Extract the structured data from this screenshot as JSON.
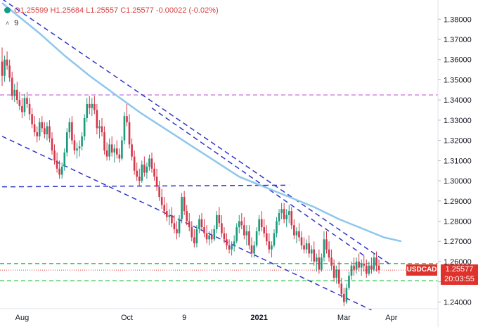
{
  "header": {
    "open": "O1.25599",
    "high": "H1.25684",
    "low": "L1.25557",
    "close": "C1.25577",
    "change": "-0.00022 (-0.02%)",
    "indicator_count": "9"
  },
  "price_tag": {
    "symbol": "USDCAD",
    "price": "1.25577",
    "countdown": "20:03:55"
  },
  "colors": {
    "up": "#1c9a7c",
    "down": "#d4364a",
    "trendline": "#3035c8",
    "ma": "#8ec7ec",
    "resistance": "#cc6ee0",
    "support": "#28c44a",
    "tag": "#e0322c"
  },
  "chart_data": {
    "type": "candlestick",
    "symbol": "USDCAD",
    "y_range": [
      1.237,
      1.3895
    ],
    "y_ticks": [
      "1.38000",
      "1.37000",
      "1.36000",
      "1.35000",
      "1.34000",
      "1.33000",
      "1.32000",
      "1.31000",
      "1.30000",
      "1.29000",
      "1.28000",
      "1.27000",
      "1.26000",
      "1.25000",
      "1.24000"
    ],
    "x_labels": [
      "Aug",
      "Oct",
      "9",
      "2021",
      "Mar",
      "Apr"
    ],
    "x_ticks": [
      {
        "i": 8,
        "label": "Aug"
      },
      {
        "i": 50,
        "label": "Oct"
      },
      {
        "i": 73,
        "label": "9"
      },
      {
        "i": 103,
        "label": "2021"
      },
      {
        "i": 137,
        "label": "Mar"
      },
      {
        "i": 156,
        "label": "Apr"
      }
    ],
    "candles": [
      [
        1.359,
        1.366,
        1.347,
        1.352
      ],
      [
        1.352,
        1.362,
        1.349,
        1.36
      ],
      [
        1.36,
        1.364,
        1.355,
        1.357
      ],
      [
        1.357,
        1.36,
        1.349,
        1.351
      ],
      [
        1.351,
        1.354,
        1.34,
        1.342
      ],
      [
        1.342,
        1.348,
        1.339,
        1.345
      ],
      [
        1.345,
        1.349,
        1.338,
        1.34
      ],
      [
        1.34,
        1.344,
        1.335,
        1.337
      ],
      [
        1.337,
        1.341,
        1.331,
        1.334
      ],
      [
        1.334,
        1.343,
        1.332,
        1.341
      ],
      [
        1.341,
        1.344,
        1.336,
        1.338
      ],
      [
        1.338,
        1.341,
        1.33,
        1.333
      ],
      [
        1.333,
        1.336,
        1.326,
        1.328
      ],
      [
        1.328,
        1.332,
        1.322,
        1.324
      ],
      [
        1.324,
        1.327,
        1.319,
        1.322
      ],
      [
        1.322,
        1.331,
        1.32,
        1.329
      ],
      [
        1.329,
        1.332,
        1.324,
        1.326
      ],
      [
        1.326,
        1.329,
        1.321,
        1.323
      ],
      [
        1.323,
        1.329,
        1.32,
        1.327
      ],
      [
        1.327,
        1.33,
        1.319,
        1.321
      ],
      [
        1.321,
        1.324,
        1.313,
        1.315
      ],
      [
        1.315,
        1.318,
        1.308,
        1.31
      ],
      [
        1.31,
        1.314,
        1.304,
        1.306
      ],
      [
        1.306,
        1.31,
        1.301,
        1.303
      ],
      [
        1.303,
        1.309,
        1.301,
        1.307
      ],
      [
        1.307,
        1.316,
        1.305,
        1.314
      ],
      [
        1.314,
        1.326,
        1.312,
        1.324
      ],
      [
        1.324,
        1.331,
        1.321,
        1.329
      ],
      [
        1.329,
        1.332,
        1.318,
        1.32
      ],
      [
        1.32,
        1.323,
        1.313,
        1.315
      ],
      [
        1.315,
        1.319,
        1.311,
        1.316
      ],
      [
        1.316,
        1.32,
        1.312,
        1.317
      ],
      [
        1.317,
        1.324,
        1.315,
        1.322
      ],
      [
        1.322,
        1.333,
        1.32,
        1.331
      ],
      [
        1.331,
        1.341,
        1.329,
        1.338
      ],
      [
        1.338,
        1.342,
        1.333,
        1.336
      ],
      [
        1.336,
        1.341,
        1.332,
        1.338
      ],
      [
        1.338,
        1.342,
        1.333,
        1.335
      ],
      [
        1.335,
        1.338,
        1.323,
        1.326
      ],
      [
        1.326,
        1.33,
        1.321,
        1.327
      ],
      [
        1.327,
        1.331,
        1.322,
        1.324
      ],
      [
        1.324,
        1.327,
        1.313,
        1.315
      ],
      [
        1.315,
        1.319,
        1.31,
        1.312
      ],
      [
        1.312,
        1.321,
        1.31,
        1.318
      ],
      [
        1.318,
        1.322,
        1.312,
        1.314
      ],
      [
        1.314,
        1.318,
        1.309,
        1.316
      ],
      [
        1.316,
        1.32,
        1.311,
        1.313
      ],
      [
        1.313,
        1.316,
        1.309,
        1.311
      ],
      [
        1.311,
        1.322,
        1.31,
        1.32
      ],
      [
        1.32,
        1.334,
        1.318,
        1.332
      ],
      [
        1.332,
        1.338,
        1.327,
        1.329
      ],
      [
        1.329,
        1.333,
        1.316,
        1.318
      ],
      [
        1.318,
        1.321,
        1.31,
        1.312
      ],
      [
        1.312,
        1.315,
        1.303,
        1.305
      ],
      [
        1.305,
        1.309,
        1.3,
        1.302
      ],
      [
        1.302,
        1.306,
        1.297,
        1.3
      ],
      [
        1.3,
        1.31,
        1.299,
        1.308
      ],
      [
        1.308,
        1.312,
        1.302,
        1.304
      ],
      [
        1.304,
        1.309,
        1.301,
        1.307
      ],
      [
        1.307,
        1.313,
        1.305,
        1.311
      ],
      [
        1.311,
        1.314,
        1.304,
        1.306
      ],
      [
        1.306,
        1.309,
        1.3,
        1.302
      ],
      [
        1.302,
        1.306,
        1.295,
        1.297
      ],
      [
        1.297,
        1.3,
        1.29,
        1.292
      ],
      [
        1.292,
        1.296,
        1.286,
        1.288
      ],
      [
        1.288,
        1.292,
        1.283,
        1.285
      ],
      [
        1.285,
        1.289,
        1.28,
        1.282
      ],
      [
        1.282,
        1.286,
        1.278,
        1.283
      ],
      [
        1.283,
        1.287,
        1.277,
        1.279
      ],
      [
        1.279,
        1.283,
        1.274,
        1.276
      ],
      [
        1.276,
        1.28,
        1.271,
        1.274
      ],
      [
        1.274,
        1.283,
        1.272,
        1.281
      ],
      [
        1.281,
        1.294,
        1.279,
        1.292
      ],
      [
        1.292,
        1.295,
        1.283,
        1.285
      ],
      [
        1.285,
        1.288,
        1.278,
        1.28
      ],
      [
        1.28,
        1.284,
        1.275,
        1.277
      ],
      [
        1.277,
        1.28,
        1.27,
        1.272
      ],
      [
        1.272,
        1.276,
        1.267,
        1.269
      ],
      [
        1.269,
        1.278,
        1.267,
        1.276
      ],
      [
        1.276,
        1.283,
        1.274,
        1.281
      ],
      [
        1.281,
        1.284,
        1.275,
        1.277
      ],
      [
        1.277,
        1.281,
        1.272,
        1.274
      ],
      [
        1.274,
        1.278,
        1.269,
        1.271
      ],
      [
        1.271,
        1.275,
        1.268,
        1.273
      ],
      [
        1.273,
        1.276,
        1.269,
        1.271
      ],
      [
        1.271,
        1.278,
        1.27,
        1.276
      ],
      [
        1.276,
        1.285,
        1.274,
        1.283
      ],
      [
        1.283,
        1.287,
        1.277,
        1.279
      ],
      [
        1.279,
        1.283,
        1.272,
        1.274
      ],
      [
        1.274,
        1.277,
        1.269,
        1.271
      ],
      [
        1.271,
        1.274,
        1.266,
        1.268
      ],
      [
        1.268,
        1.271,
        1.264,
        1.266
      ],
      [
        1.266,
        1.27,
        1.263,
        1.268
      ],
      [
        1.268,
        1.273,
        1.265,
        1.27
      ],
      [
        1.27,
        1.279,
        1.269,
        1.277
      ],
      [
        1.277,
        1.283,
        1.274,
        1.28
      ],
      [
        1.28,
        1.284,
        1.276,
        1.278
      ],
      [
        1.278,
        1.282,
        1.271,
        1.273
      ],
      [
        1.273,
        1.278,
        1.268,
        1.275
      ],
      [
        1.275,
        1.278,
        1.266,
        1.268
      ],
      [
        1.268,
        1.272,
        1.262,
        1.264
      ],
      [
        1.264,
        1.27,
        1.262,
        1.268
      ],
      [
        1.268,
        1.277,
        1.267,
        1.275
      ],
      [
        1.275,
        1.283,
        1.273,
        1.281
      ],
      [
        1.281,
        1.285,
        1.275,
        1.277
      ],
      [
        1.277,
        1.281,
        1.272,
        1.274
      ],
      [
        1.274,
        1.278,
        1.268,
        1.27
      ],
      [
        1.27,
        1.274,
        1.264,
        1.266
      ],
      [
        1.266,
        1.27,
        1.262,
        1.268
      ],
      [
        1.268,
        1.276,
        1.267,
        1.274
      ],
      [
        1.274,
        1.282,
        1.272,
        1.28
      ],
      [
        1.28,
        1.286,
        1.278,
        1.284
      ],
      [
        1.284,
        1.289,
        1.281,
        1.286
      ],
      [
        1.286,
        1.289,
        1.279,
        1.281
      ],
      [
        1.281,
        1.286,
        1.277,
        1.283
      ],
      [
        1.283,
        1.288,
        1.279,
        1.285
      ],
      [
        1.285,
        1.287,
        1.276,
        1.278
      ],
      [
        1.278,
        1.281,
        1.271,
        1.273
      ],
      [
        1.273,
        1.277,
        1.269,
        1.275
      ],
      [
        1.275,
        1.279,
        1.27,
        1.272
      ],
      [
        1.272,
        1.275,
        1.266,
        1.268
      ],
      [
        1.268,
        1.272,
        1.264,
        1.266
      ],
      [
        1.266,
        1.271,
        1.264,
        1.269
      ],
      [
        1.269,
        1.273,
        1.262,
        1.264
      ],
      [
        1.264,
        1.268,
        1.26,
        1.266
      ],
      [
        1.266,
        1.27,
        1.258,
        1.26
      ],
      [
        1.26,
        1.264,
        1.255,
        1.262
      ],
      [
        1.262,
        1.266,
        1.254,
        1.256
      ],
      [
        1.256,
        1.264,
        1.255,
        1.262
      ],
      [
        1.262,
        1.275,
        1.26,
        1.271
      ],
      [
        1.271,
        1.275,
        1.264,
        1.266
      ],
      [
        1.266,
        1.27,
        1.26,
        1.262
      ],
      [
        1.262,
        1.266,
        1.256,
        1.258
      ],
      [
        1.258,
        1.261,
        1.25,
        1.252
      ],
      [
        1.252,
        1.258,
        1.249,
        1.256
      ],
      [
        1.256,
        1.26,
        1.247,
        1.249
      ],
      [
        1.249,
        1.252,
        1.242,
        1.244
      ],
      [
        1.244,
        1.247,
        1.238,
        1.24
      ],
      [
        1.24,
        1.249,
        1.239,
        1.247
      ],
      [
        1.247,
        1.255,
        1.246,
        1.253
      ],
      [
        1.253,
        1.26,
        1.251,
        1.258
      ],
      [
        1.258,
        1.262,
        1.253,
        1.256
      ],
      [
        1.256,
        1.262,
        1.254,
        1.26
      ],
      [
        1.26,
        1.264,
        1.255,
        1.257
      ],
      [
        1.257,
        1.261,
        1.253,
        1.259
      ],
      [
        1.259,
        1.263,
        1.255,
        1.258
      ],
      [
        1.258,
        1.261,
        1.252,
        1.254
      ],
      [
        1.254,
        1.26,
        1.253,
        1.258
      ],
      [
        1.258,
        1.262,
        1.254,
        1.256
      ],
      [
        1.256,
        1.264,
        1.255,
        1.262
      ],
      [
        1.262,
        1.265,
        1.255,
        1.258
      ],
      [
        1.258,
        1.261,
        1.254,
        1.2558
      ]
    ],
    "moving_average": [
      [
        0,
        1.388
      ],
      [
        6,
        1.382
      ],
      [
        15,
        1.373
      ],
      [
        25,
        1.362
      ],
      [
        35,
        1.352
      ],
      [
        45,
        1.343
      ],
      [
        55,
        1.334
      ],
      [
        65,
        1.326
      ],
      [
        75,
        1.318
      ],
      [
        85,
        1.31
      ],
      [
        95,
        1.302
      ],
      [
        105,
        1.297
      ],
      [
        115,
        1.292
      ],
      [
        125,
        1.287
      ],
      [
        135,
        1.281
      ],
      [
        145,
        1.276
      ],
      [
        153,
        1.272
      ],
      [
        160,
        1.27
      ]
    ],
    "trendlines": [
      {
        "name": "upper channel",
        "from": [
          0,
          1.39
        ],
        "to": [
          155,
          1.259
        ]
      },
      {
        "name": "lower channel",
        "from": [
          0,
          1.322
        ],
        "to": [
          148,
          1.236
        ]
      },
      {
        "name": "mid diagonal",
        "from": [
          60,
          1.336
        ],
        "to": [
          145,
          1.263
        ]
      },
      {
        "name": "horizontal 1.297",
        "from": [
          0,
          1.297
        ],
        "to": [
          115,
          1.2978
        ]
      }
    ],
    "horizontal_levels": [
      {
        "name": "resistance",
        "value": 1.3425,
        "style": "dashed"
      },
      {
        "name": "support upper",
        "value": 1.259,
        "style": "dashed"
      },
      {
        "name": "support lower",
        "value": 1.2505,
        "style": "dashed"
      },
      {
        "name": "last price",
        "value": 1.25577,
        "style": "dotted"
      }
    ],
    "grid": false,
    "last": 1.25577
  }
}
